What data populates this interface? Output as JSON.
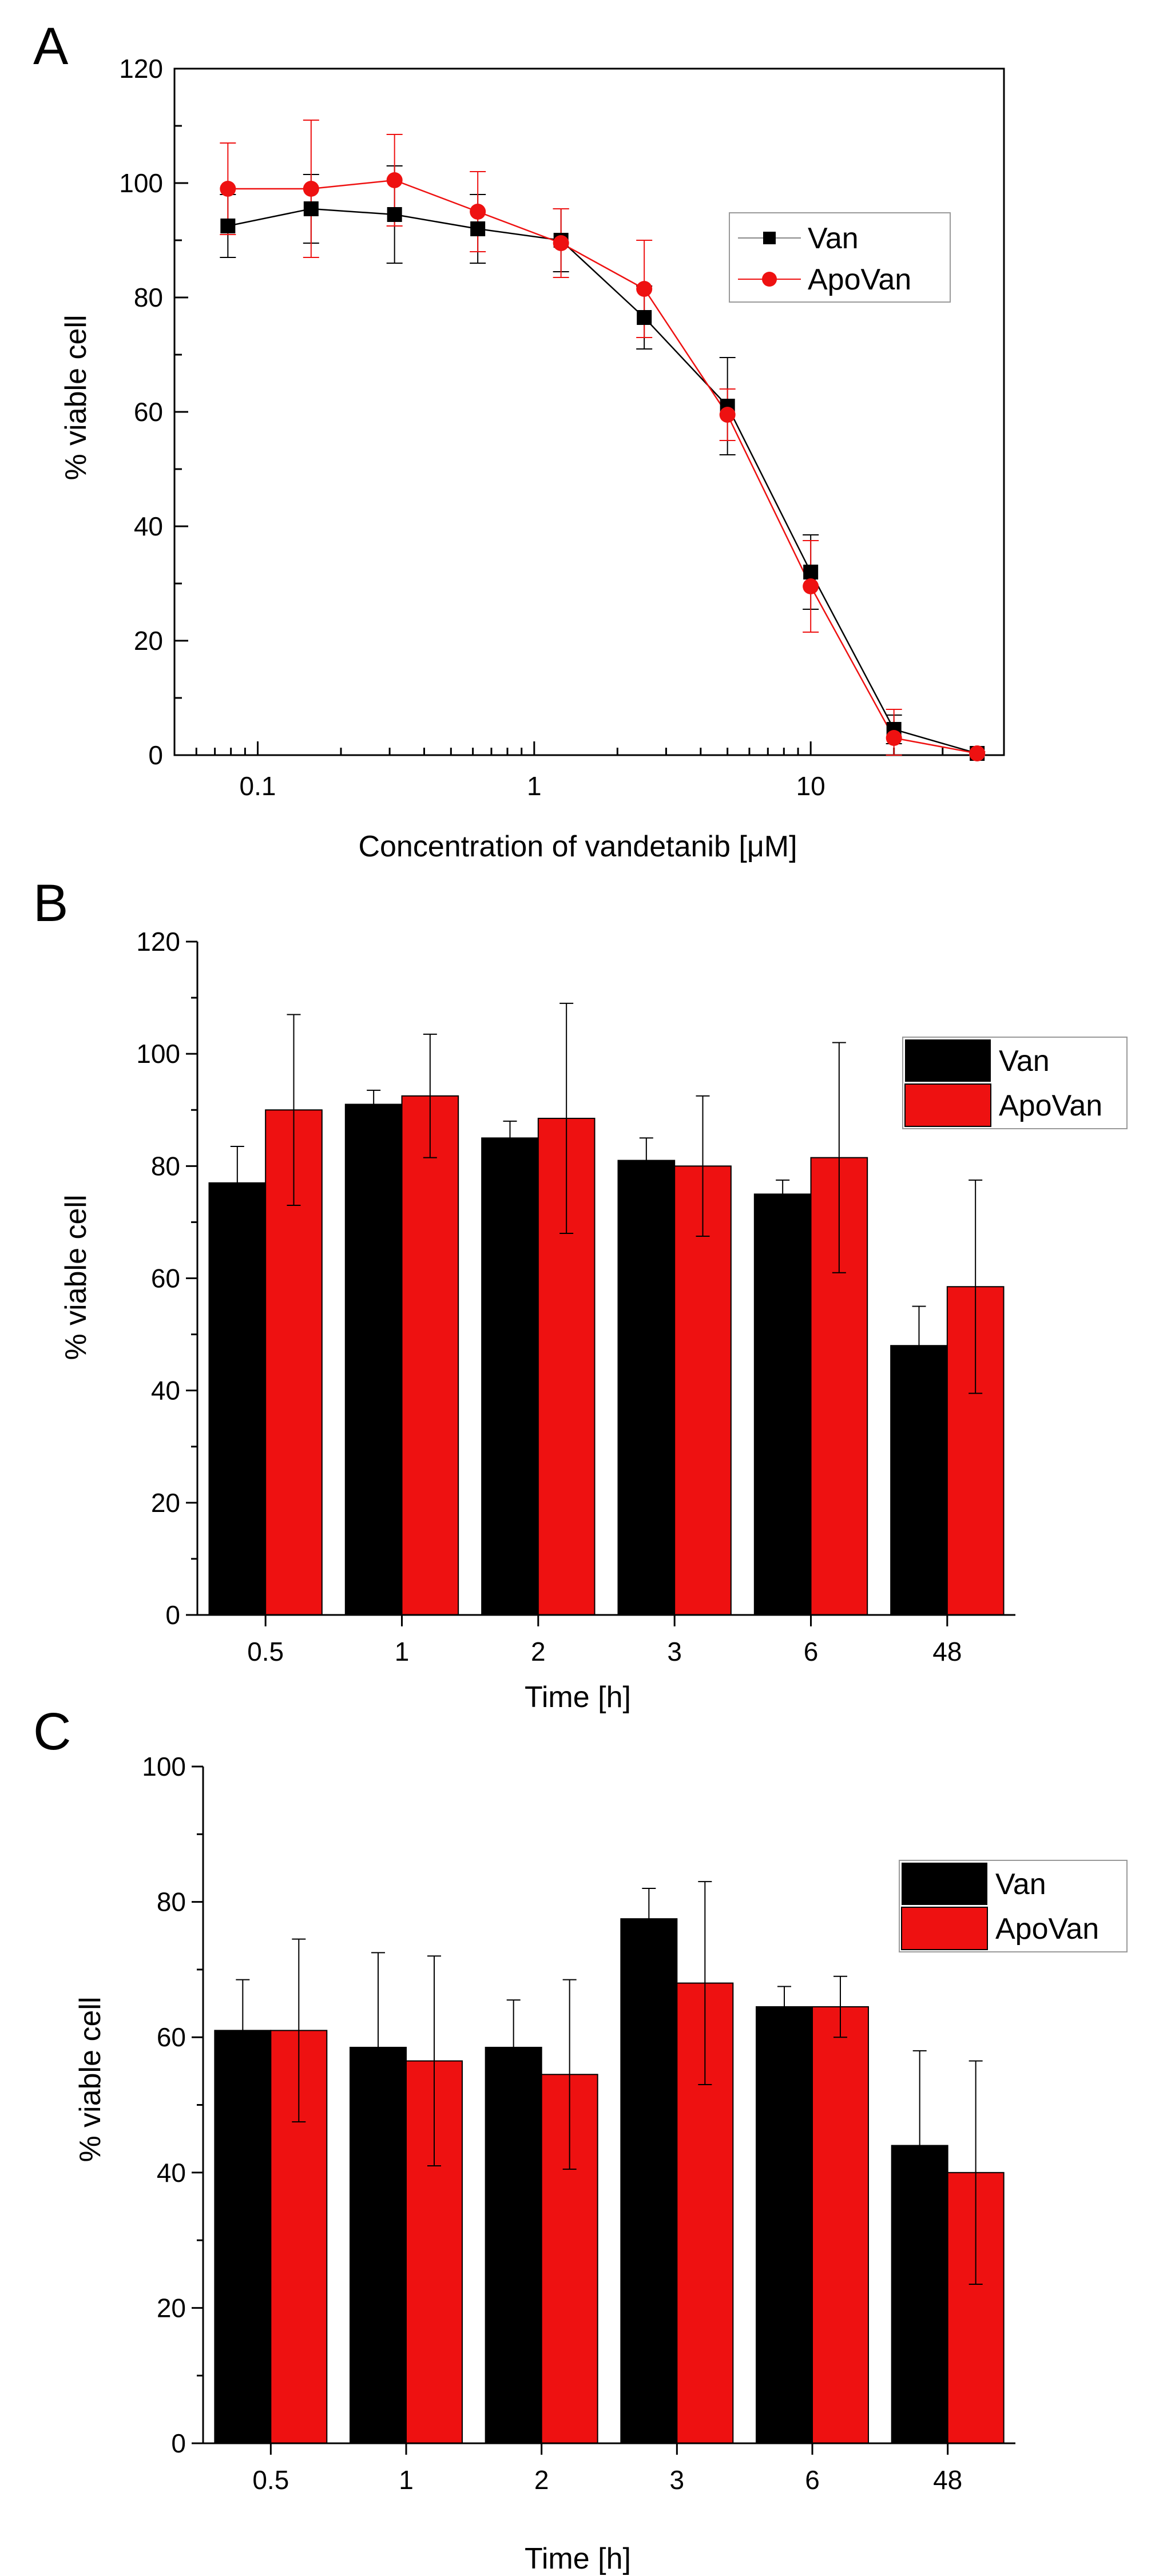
{
  "colors": {
    "van": "#000000",
    "apovan": "#ee1111",
    "axis": "#000000"
  },
  "chart_data": [
    {
      "panel": "A",
      "type": "line",
      "xscale": "log",
      "xlabel_main": "Concentration of vandetanib [",
      "xlabel_mu": "μ",
      "xlabel_tail": "M]",
      "ylabel": "% viable cell",
      "xlim": [
        0.05,
        50
      ],
      "ylim": [
        0,
        120
      ],
      "xticks": [
        0.1,
        1,
        10
      ],
      "xtick_labels": [
        "0.1",
        "1",
        "10"
      ],
      "yticks": [
        0,
        20,
        40,
        60,
        80,
        100,
        120
      ],
      "ytick_labels": [
        "0",
        "20",
        "40",
        "60",
        "80",
        "100",
        "120"
      ],
      "legend": [
        "Van",
        "ApoVan"
      ],
      "series": [
        {
          "name": "Van",
          "marker": "square",
          "x": [
            0.078,
            0.156,
            0.3125,
            0.625,
            1.25,
            2.5,
            5,
            10,
            20,
            40
          ],
          "y": [
            92.5,
            95.5,
            94.5,
            92,
            90,
            76.5,
            61,
            32,
            4.5,
            0.3
          ],
          "err": [
            5.5,
            6,
            8.5,
            6,
            5.5,
            5.5,
            8.5,
            6.5,
            2.5,
            0.3
          ]
        },
        {
          "name": "ApoVan",
          "marker": "circle",
          "x": [
            0.078,
            0.156,
            0.3125,
            0.625,
            1.25,
            2.5,
            5,
            10,
            20,
            40
          ],
          "y": [
            99,
            99,
            100.5,
            95,
            89.5,
            81.5,
            59.5,
            29.5,
            3,
            0.3
          ],
          "err": [
            8,
            12,
            8,
            7,
            6,
            8.5,
            4.5,
            8,
            5,
            0.3
          ]
        }
      ]
    },
    {
      "panel": "B",
      "type": "bar",
      "xlabel": "Time [h]",
      "ylabel": "% viable cell",
      "ylim": [
        0,
        120
      ],
      "yticks": [
        0,
        20,
        40,
        60,
        80,
        100,
        120
      ],
      "ytick_labels": [
        "0",
        "20",
        "40",
        "60",
        "80",
        "100",
        "120"
      ],
      "categories": [
        "0.5",
        "1",
        "2",
        "3",
        "6",
        "48"
      ],
      "legend": [
        "Van",
        "ApoVan"
      ],
      "series": [
        {
          "name": "Van",
          "values": [
            77,
            91,
            85,
            81,
            75,
            48
          ],
          "err": [
            6.5,
            2.5,
            3,
            4,
            2.5,
            7
          ]
        },
        {
          "name": "ApoVan",
          "values": [
            90,
            92.5,
            88.5,
            80,
            81.5,
            58.5
          ],
          "err": [
            17,
            11,
            20.5,
            12.5,
            20.5,
            19
          ]
        }
      ]
    },
    {
      "panel": "C",
      "type": "bar",
      "xlabel": "Time [h]",
      "ylabel": "% viable cell",
      "ylim": [
        0,
        100
      ],
      "yticks": [
        0,
        20,
        40,
        60,
        80,
        100
      ],
      "ytick_labels": [
        "0",
        "20",
        "40",
        "60",
        "80",
        "100"
      ],
      "categories": [
        "0.5",
        "1",
        "2",
        "3",
        "6",
        "48"
      ],
      "legend": [
        "Van",
        "ApoVan"
      ],
      "series": [
        {
          "name": "Van",
          "values": [
            61,
            58.5,
            58.5,
            77.5,
            64.5,
            44
          ],
          "err": [
            7.5,
            14,
            7,
            4.5,
            3,
            14
          ]
        },
        {
          "name": "ApoVan",
          "values": [
            61,
            56.5,
            54.5,
            68,
            64.5,
            40
          ],
          "err": [
            13.5,
            15.5,
            14,
            15,
            4.5,
            16.5
          ]
        }
      ]
    }
  ]
}
